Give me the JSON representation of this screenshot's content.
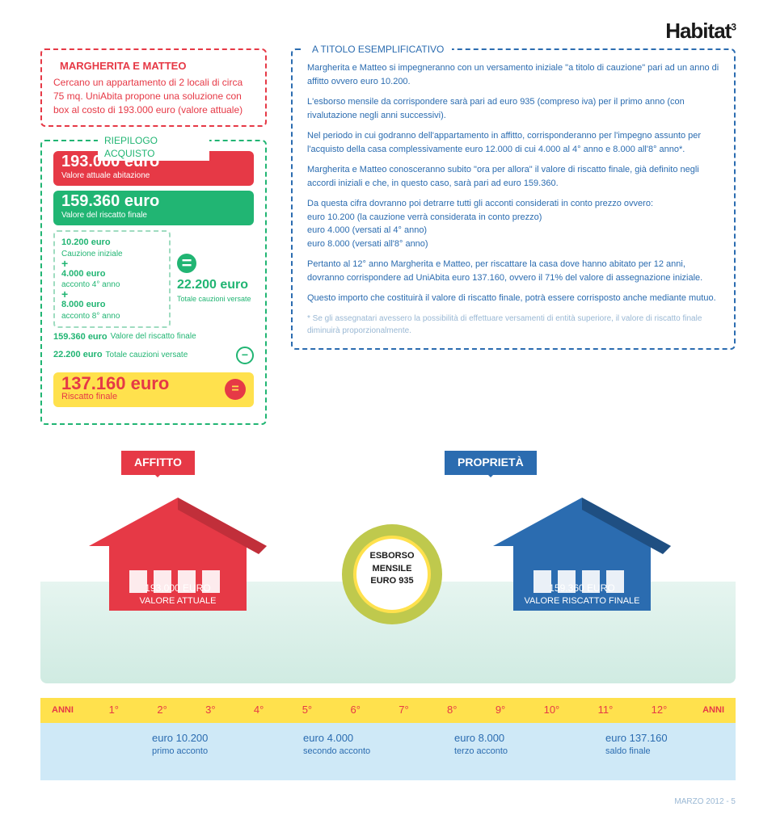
{
  "brand": "Habitat",
  "brand_sup": "3",
  "intro": {
    "title": "MARGHERITA E MATTEO",
    "text": "Cercano un appartamento di 2 locali di circa 75 mq. UniAbita propone una soluzione con box al costo di 193.000 euro (valore attuale)"
  },
  "summary": {
    "title": "RIEPILOGO ACQUISTO",
    "valore_abitazione": "193.000 euro",
    "valore_abitazione_sub": "Valore attuale abitazione",
    "valore_riscatto": "159.360 euro",
    "valore_riscatto_sub": "Valore del riscatto finale",
    "cauzione": {
      "amt": "10.200 euro",
      "sub": "Cauzione iniziale"
    },
    "acconto4": {
      "amt": "4.000 euro",
      "sub": "acconto 4° anno"
    },
    "acconto8": {
      "amt": "8.000 euro",
      "sub": "acconto 8° anno"
    },
    "totale_cauzioni": {
      "amt": "22.200 euro",
      "sub": "Totale cauzioni versate"
    },
    "calc1": {
      "amt": "159.360 euro",
      "sub": "Valore del riscatto finale"
    },
    "calc2": {
      "amt": "22.200 euro",
      "sub": "Totale cauzioni versate"
    },
    "finale": {
      "amt": "137.160 euro",
      "sub": "Riscatto finale"
    }
  },
  "explain": {
    "title": "A TITOLO ESEMPLIFICATIVO",
    "p1": "Margherita e Matteo si impegneranno con un versamento iniziale \"a titolo di cauzione\" pari ad un anno di affitto ovvero euro 10.200.",
    "p2": "L'esborso mensile da corrispondere sarà pari ad euro 935 (compreso iva) per il primo anno (con rivalutazione negli anni successivi).",
    "p3": "Nel periodo in cui godranno dell'appartamento in affitto, corrisponderanno per l'impegno assunto per l'acquisto della casa complessivamente euro 12.000 di cui 4.000 al 4° anno e 8.000 all'8° anno*.",
    "p4": "Margherita e Matteo conosceranno subito \"ora per allora\" il valore di riscatto finale, già definito negli accordi iniziali e che, in questo caso, sarà pari ad euro 159.360.",
    "p5": "Da questa cifra dovranno poi detrarre tutti gli acconti considerati in conto prezzo ovvero:\neuro 10.200 (la cauzione verrà considerata in conto prezzo)\neuro  4.000 (versati al 4° anno)\neuro  8.000  (versati all'8° anno)",
    "p6": "Pertanto al 12° anno Margherita e Matteo, per riscattare la casa dove hanno abitato per 12 anni, dovranno corrispondere ad UniAbita euro 137.160, ovvero il 71% del valore di assegnazione iniziale.",
    "p7": "Questo importo che costituirà il valore di riscatto finale, potrà essere corrisposto anche mediante mutuo.",
    "note": "Se gli assegnatari avessero la possibilità di effettuare versamenti di entità superiore, il valore di riscatto finale diminuirà proporzionalmente."
  },
  "illus": {
    "affitto": "AFFITTO",
    "proprieta": "PROPRIETÀ",
    "esborso_l1": "ESBORSO MENSILE",
    "esborso_l2": "EURO 935",
    "red_val": "193.000 EURO",
    "red_sub": "VALORE ATTUALE",
    "blue_val": "159.360 EURO",
    "blue_sub": "VALORE RISCATTO FINALE",
    "colors": {
      "red": "#e63946",
      "blue": "#2b6cb0",
      "green": "#21b573",
      "yellow": "#ffe14d"
    }
  },
  "timeline": {
    "anni_label": "ANNI",
    "years": [
      "1°",
      "2°",
      "3°",
      "4°",
      "5°",
      "6°",
      "7°",
      "8°",
      "9°",
      "10°",
      "11°",
      "12°"
    ],
    "pay1": {
      "amt": "euro 10.200",
      "sub": "primo acconto"
    },
    "pay2": {
      "amt": "euro 4.000",
      "sub": "secondo acconto"
    },
    "pay3": {
      "amt": "euro 8.000",
      "sub": "terzo acconto"
    },
    "pay4": {
      "amt": "euro 137.160",
      "sub": "saldo finale"
    }
  },
  "footer": "MARZO 2012 - 5"
}
